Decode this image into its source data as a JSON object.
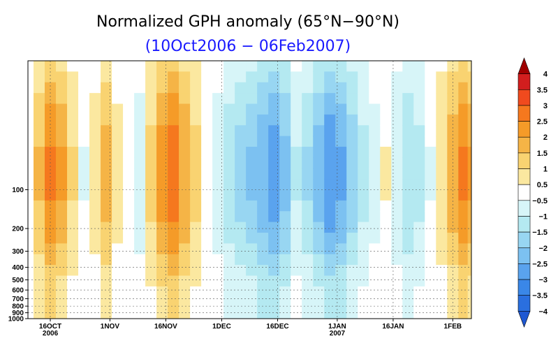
{
  "chart_data": {
    "type": "heatmap",
    "title": "Normalized GPH anomaly (65°N−90°N)",
    "subtitle": "(10Oct2006 − 06Feb2007)",
    "xlabel": "",
    "ylabel": "",
    "x_ticks": [
      {
        "label": "16OCT",
        "sub": "2006",
        "day": 6
      },
      {
        "label": "1NOV",
        "sub": "",
        "day": 22
      },
      {
        "label": "16NOV",
        "sub": "",
        "day": 37
      },
      {
        "label": "1DEC",
        "sub": "",
        "day": 52
      },
      {
        "label": "16DEC",
        "sub": "",
        "day": 67
      },
      {
        "label": "1JAN",
        "sub": "2007",
        "day": 83
      },
      {
        "label": "16JAN",
        "sub": "",
        "day": 98
      },
      {
        "label": "1FEB",
        "sub": "",
        "day": 114
      }
    ],
    "x_range_days": [
      0,
      119
    ],
    "y_ticks": [
      "100",
      "200",
      "300",
      "400",
      "500",
      "600",
      "700",
      "800",
      "900",
      "1000"
    ],
    "y_tick_values": [
      100,
      200,
      300,
      400,
      500,
      600,
      700,
      800,
      900,
      1000
    ],
    "y_range_hpa": [
      10,
      1000
    ],
    "y_scale": "log",
    "grid": true,
    "colorbar": {
      "levels": [
        "4",
        "3.5",
        "3",
        "2.5",
        "2",
        "1.5",
        "1",
        "0.5",
        "−0.5",
        "−1",
        "−1.5",
        "−2",
        "−2.5",
        "−3",
        "−3.5",
        "−4"
      ],
      "colors": [
        "#a00000",
        "#d21e1e",
        "#f04a1e",
        "#f5781e",
        "#f59b28",
        "#f5b446",
        "#f9d371",
        "#fbe8a0",
        "#ffffff",
        "#d7f5f8",
        "#b4e9f1",
        "#98d6f2",
        "#7cc1f1",
        "#5aa3ee",
        "#3a87e8",
        "#2a6fdf",
        "#1f58d2"
      ],
      "placement": "right"
    },
    "columns": [
      {
        "day": 0,
        "v": 0.3
      },
      {
        "day": 3,
        "v": 1.2
      },
      {
        "day": 6,
        "v": 2.0
      },
      {
        "day": 9,
        "v": 1.6
      },
      {
        "day": 12,
        "v": 0.8
      },
      {
        "day": 15,
        "v": -0.4
      },
      {
        "day": 18,
        "v": 0.6
      },
      {
        "day": 21,
        "v": 1.3
      },
      {
        "day": 24,
        "v": 0.5
      },
      {
        "day": 27,
        "v": -0.3
      },
      {
        "day": 30,
        "v": -0.6
      },
      {
        "day": 33,
        "v": 0.9
      },
      {
        "day": 36,
        "v": 1.8
      },
      {
        "day": 39,
        "v": 2.2
      },
      {
        "day": 42,
        "v": 1.5
      },
      {
        "day": 45,
        "v": 0.9
      },
      {
        "day": 48,
        "v": 0.3
      },
      {
        "day": 51,
        "v": -0.6
      },
      {
        "day": 54,
        "v": -1.0
      },
      {
        "day": 57,
        "v": -1.3
      },
      {
        "day": 60,
        "v": -1.6
      },
      {
        "day": 63,
        "v": -1.9
      },
      {
        "day": 66,
        "v": -2.2
      },
      {
        "day": 69,
        "v": -1.7
      },
      {
        "day": 72,
        "v": -0.8
      },
      {
        "day": 75,
        "v": -1.2
      },
      {
        "day": 78,
        "v": -1.8
      },
      {
        "day": 81,
        "v": -2.3
      },
      {
        "day": 84,
        "v": -2.0
      },
      {
        "day": 87,
        "v": -1.4
      },
      {
        "day": 90,
        "v": -0.9
      },
      {
        "day": 93,
        "v": -0.5
      },
      {
        "day": 96,
        "v": 0.4
      },
      {
        "day": 99,
        "v": -0.7
      },
      {
        "day": 102,
        "v": -1.1
      },
      {
        "day": 105,
        "v": -0.9
      },
      {
        "day": 108,
        "v": -0.4
      },
      {
        "day": 111,
        "v": 0.7
      },
      {
        "day": 114,
        "v": 1.4
      },
      {
        "day": 117,
        "v": 2.0
      },
      {
        "day": 119,
        "v": 1.6
      }
    ]
  }
}
